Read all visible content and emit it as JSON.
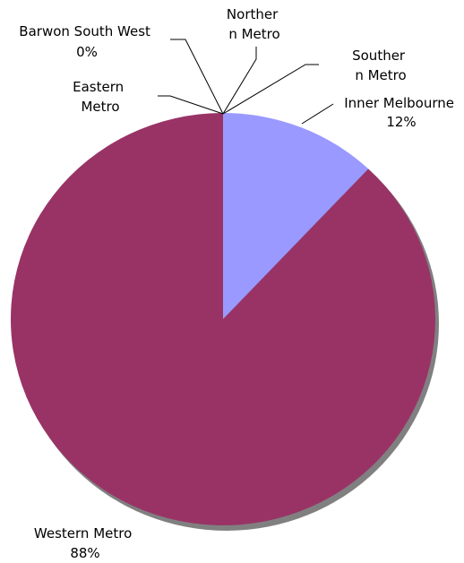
{
  "chart_data": {
    "type": "pie",
    "title": "",
    "start_angle_deg": 90,
    "direction": "clockwise",
    "slices": [
      {
        "label_lines": [
          "Inner Melbourne",
          "12%"
        ],
        "value": 12,
        "color": "#9999FF"
      },
      {
        "label_lines": [
          "Western Metro",
          "88%"
        ],
        "value": 88,
        "color": "#993366"
      },
      {
        "label_lines": [
          "Barwon South West",
          "0%"
        ],
        "value": 0,
        "color": "#993366"
      },
      {
        "label_lines": [
          "Eastern",
          "Metro"
        ],
        "value": 0,
        "color": "#993366"
      },
      {
        "label_lines": [
          "Norther",
          "n Metro"
        ],
        "value": 0,
        "color": "#993366"
      },
      {
        "label_lines": [
          "Souther",
          "n Metro"
        ],
        "value": 0,
        "color": "#993366"
      }
    ],
    "colors": {
      "shadow": "#808080",
      "outline": "#000000"
    }
  }
}
